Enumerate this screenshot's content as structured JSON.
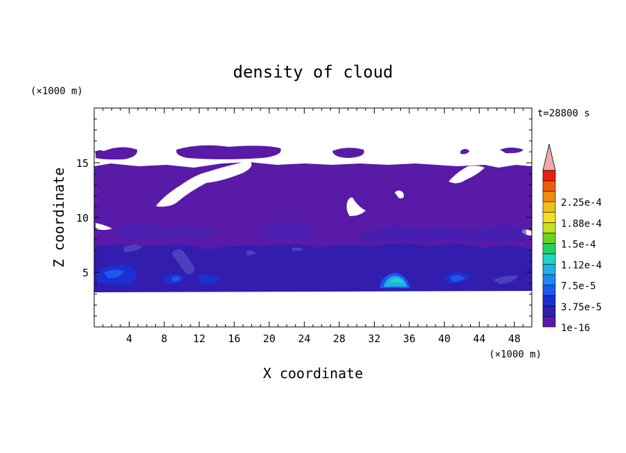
{
  "chart_data": {
    "type": "heatmap",
    "title": "density of cloud",
    "xlabel": "X coordinate",
    "ylabel": "Z coordinate",
    "x_unit": "(×1000 m)",
    "y_unit": "(×1000 m)",
    "time_label": "t=28800 s",
    "xlim": [
      0,
      50
    ],
    "ylim": [
      0,
      20
    ],
    "x_ticks": [
      4,
      8,
      12,
      16,
      20,
      24,
      28,
      32,
      36,
      40,
      44,
      48
    ],
    "y_ticks": [
      5,
      10,
      15
    ],
    "colorbar": {
      "labels": [
        "1e-16",
        "3.75e-5",
        "7.5e-5",
        "1.12e-4",
        "1.5e-4",
        "1.88e-4",
        "2.25e-4"
      ],
      "colors": [
        "#5a1aa8",
        "#2d1fb0",
        "#1c2fd0",
        "#1e56f0",
        "#1e86f2",
        "#1eb0e6",
        "#20d6c0",
        "#22d060",
        "#6ad420",
        "#c4e020",
        "#f0e020",
        "#f0c018",
        "#f08a10",
        "#f05a10",
        "#e82010",
        "#f0a8a8"
      ]
    },
    "regions": [
      {
        "level": "1e-16",
        "x": [
          0,
          50
        ],
        "z": [
          3.5,
          15
        ]
      },
      {
        "level": "1e-16",
        "x": [
          0,
          5
        ],
        "z": [
          15.5,
          16.5
        ]
      },
      {
        "level": "1e-16",
        "x": [
          10,
          22
        ],
        "z": [
          15.5,
          16.5
        ]
      },
      {
        "level": "3.75e-5",
        "x": [
          0,
          50
        ],
        "z": [
          3.5,
          7
        ]
      },
      {
        "level": "7.5e-5",
        "x": [
          32,
          36
        ],
        "z": [
          3.7,
          5.2
        ]
      },
      {
        "level": "1.12e-4",
        "x": [
          33,
          35.5
        ],
        "z": [
          4.2,
          5
        ]
      }
    ]
  }
}
